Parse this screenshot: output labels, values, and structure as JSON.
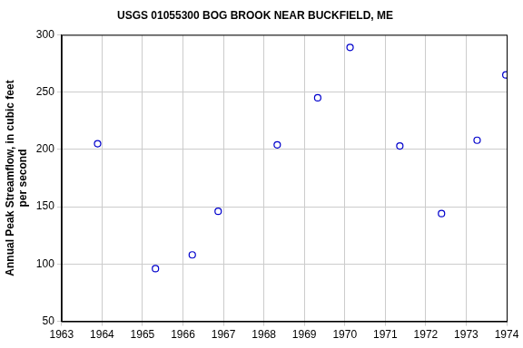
{
  "chart_data": {
    "type": "scatter",
    "title": "USGS 01055300 BOG BROOK NEAR BUCKFIELD, ME",
    "ylabel": [
      "Annual Peak Streamflow, in cubic feet",
      "per second"
    ],
    "x": [
      1963.89,
      1965.32,
      1966.23,
      1966.87,
      1968.33,
      1969.33,
      1970.13,
      1971.36,
      1972.39,
      1973.27,
      1973.98
    ],
    "values": [
      205,
      96,
      108,
      146,
      204,
      245,
      289,
      203,
      144,
      208,
      265
    ],
    "color": "#0000cc",
    "marker": "open circle",
    "xlim": [
      1963,
      1974
    ],
    "xticks": [
      1963,
      1964,
      1965,
      1966,
      1967,
      1968,
      1969,
      1970,
      1971,
      1972,
      1973,
      1974
    ],
    "ylim": [
      50,
      300
    ],
    "yticks": [
      50,
      100,
      150,
      200,
      250,
      300
    ],
    "grid": true
  }
}
